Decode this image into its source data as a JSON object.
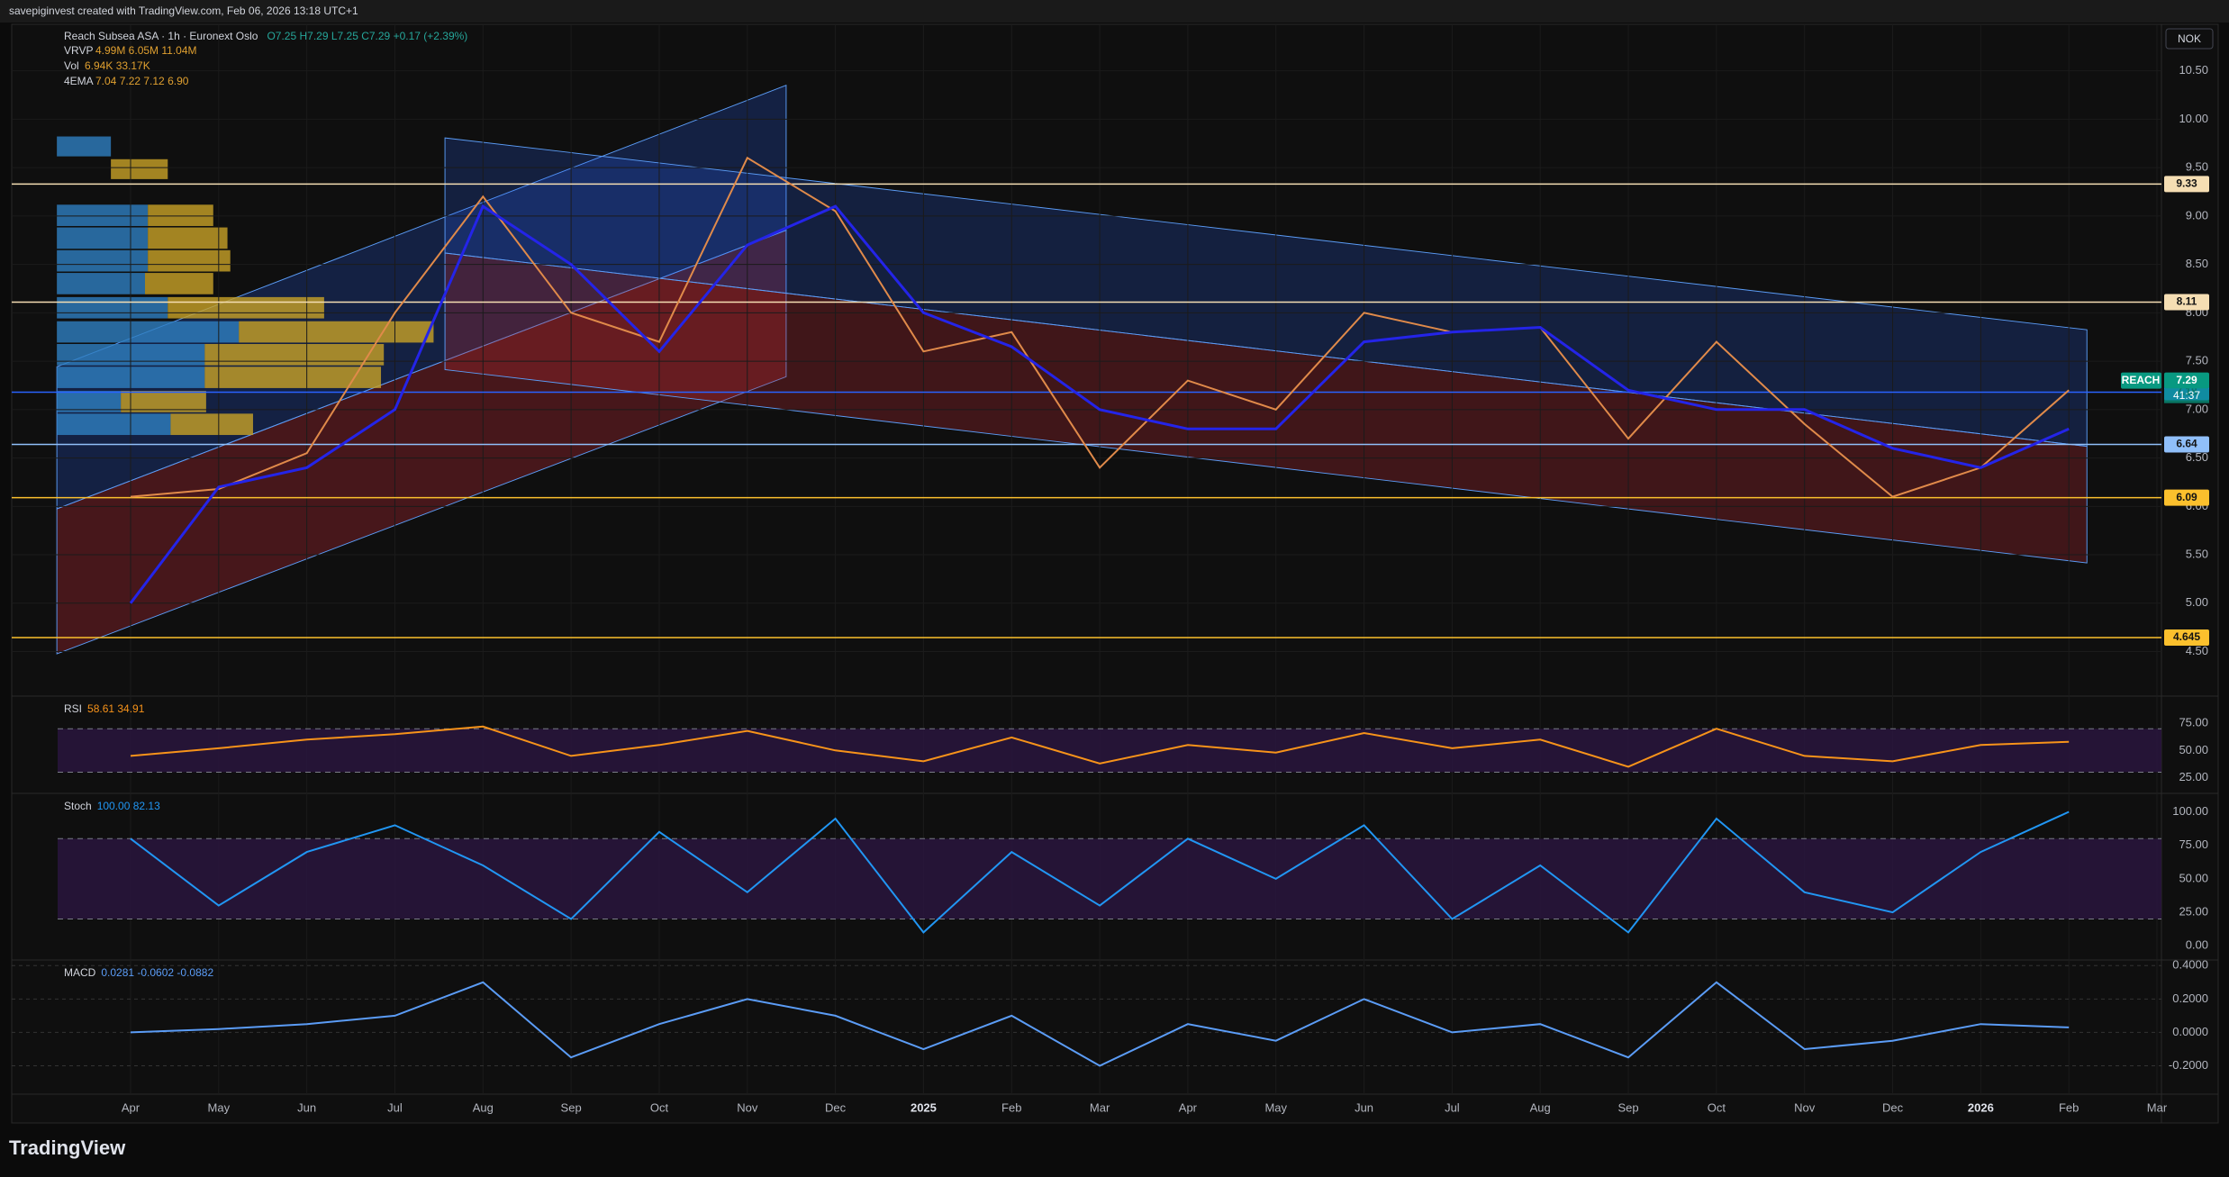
{
  "header": {
    "caption": "savepiginvest created with TradingView.com, Feb 06, 2026 13:18 UTC+1",
    "ohlc": "O7.25 H7.29 L7.25 C7.29 +0.17 (+2.39%)",
    "indicators": [
      {
        "name": "VRVP",
        "readout": "4.99M 6.05M 11.04M"
      },
      {
        "name": "Vol",
        "readout": "6.94K 33.17K"
      }
    ],
    "currency": "NOK"
  },
  "footer": {
    "brand": "TradingView"
  },
  "chart_data": [
    {
      "type": "line",
      "title": "Reach Subsea ASA · 1h · Euronext Oslo",
      "categories": [
        "Apr",
        "May",
        "Jun",
        "Jul",
        "Aug",
        "Sep",
        "Oct",
        "Nov",
        "Dec",
        "2025",
        "Feb",
        "Mar",
        "Apr",
        "May",
        "Jun",
        "Jul",
        "Aug",
        "Sep",
        "Oct",
        "Nov",
        "Dec",
        "2026",
        "Feb",
        "Mar"
      ],
      "series": [
        {
          "name": "REACH",
          "color": "#e08a4a",
          "values": [
            6.1,
            6.18,
            6.55,
            8.0,
            9.2,
            8.0,
            7.7,
            9.6,
            9.05,
            7.6,
            7.8,
            6.4,
            7.3,
            7.0,
            8.0,
            7.8,
            7.85,
            6.7,
            7.7,
            6.85,
            6.1,
            6.4,
            7.2,
            null
          ]
        },
        {
          "name": "4EMA",
          "color": "#2424e8",
          "readout": "7.04 7.22 7.12 6.90",
          "values": [
            5.0,
            6.2,
            6.4,
            7.0,
            9.1,
            8.5,
            7.6,
            8.7,
            9.1,
            8.0,
            7.65,
            7.0,
            6.8,
            6.8,
            7.7,
            7.8,
            7.85,
            7.2,
            7.0,
            7.0,
            6.6,
            6.4,
            6.8,
            null
          ]
        }
      ],
      "ylim": [
        4.04,
        10.98
      ],
      "yticks": [
        {
          "value": 4.5,
          "label": "4.50"
        },
        {
          "value": 5,
          "label": "5.00"
        },
        {
          "value": 5.5,
          "label": "5.50"
        },
        {
          "value": 6,
          "label": "6.00"
        },
        {
          "value": 6.5,
          "label": "6.50"
        },
        {
          "value": 7,
          "label": "7.00"
        },
        {
          "value": 7.5,
          "label": "7.50"
        },
        {
          "value": 8,
          "label": "8.00"
        },
        {
          "value": 8.5,
          "label": "8.50"
        },
        {
          "value": 9,
          "label": "9.00"
        },
        {
          "value": 9.5,
          "label": "9.50"
        },
        {
          "value": 10,
          "label": "10.00"
        },
        {
          "value": 10.5,
          "label": "10.50"
        }
      ],
      "levels": [
        {
          "value": 9.33,
          "color": "#f5deb3"
        },
        {
          "value": 8.11,
          "color": "#f5deb3"
        },
        {
          "value": 7.18,
          "color": "#2962ff"
        },
        {
          "value": 6.64,
          "color": "#90bff9"
        },
        {
          "value": 6.09,
          "color": "#fbc02d"
        },
        {
          "value": 4.645,
          "color": "#fbc02d"
        }
      ],
      "last": {
        "value": 7.29,
        "color": "#089981",
        "countdown": "41:37"
      },
      "grid": true
    },
    {
      "type": "line",
      "series": [
        {
          "name": "RSI",
          "color": "#f7931a",
          "values": [
            45,
            52,
            60,
            65,
            72,
            45,
            55,
            68,
            50,
            40,
            62,
            38,
            55,
            48,
            66,
            52,
            60,
            35,
            70,
            45,
            40,
            55,
            58,
            null
          ]
        }
      ],
      "readout": "58.61 34.91",
      "band": [
        30,
        70
      ],
      "band_color": "#2a1540",
      "ylim": [
        10.5,
        100
      ],
      "yticks": [
        {
          "value": 25,
          "label": "25.00"
        },
        {
          "value": 50,
          "label": "50.00"
        },
        {
          "value": 75,
          "label": "75.00"
        }
      ]
    },
    {
      "type": "line",
      "series": [
        {
          "name": "Stoch",
          "color": "#2196f3",
          "values": [
            80,
            30,
            70,
            90,
            60,
            20,
            85,
            40,
            95,
            10,
            70,
            30,
            80,
            50,
            90,
            20,
            60,
            10,
            95,
            40,
            25,
            70,
            100,
            null
          ]
        }
      ],
      "readout": "100.00 82.13",
      "band": [
        20,
        80
      ],
      "band_color": "#2a1540",
      "ylim": [
        -10.6,
        113.8
      ],
      "yticks": [
        {
          "value": 0,
          "label": "0.00"
        },
        {
          "value": 25,
          "label": "25.00"
        },
        {
          "value": 50,
          "label": "50.00"
        },
        {
          "value": 75,
          "label": "75.00"
        },
        {
          "value": 100,
          "label": "100.00"
        }
      ]
    },
    {
      "type": "line",
      "series": [
        {
          "name": "MACD",
          "color": "#5b9cf6",
          "values": [
            0.0,
            0.02,
            0.05,
            0.1,
            0.3,
            -0.15,
            0.05,
            0.2,
            0.1,
            -0.1,
            0.1,
            -0.2,
            0.05,
            -0.05,
            0.2,
            0.0,
            0.05,
            -0.15,
            0.3,
            -0.1,
            -0.05,
            0.05,
            0.03,
            null
          ]
        }
      ],
      "readout": "0.0281 -0.0602 -0.0882",
      "ylim": [
        -0.37,
        0.434
      ],
      "yticks": [
        {
          "value": -0.2,
          "label": "-0.2000"
        },
        {
          "value": 0,
          "label": "0.0000"
        },
        {
          "value": 0.2,
          "label": "0.2000"
        },
        {
          "value": 0.4,
          "label": "0.4000"
        }
      ]
    }
  ]
}
